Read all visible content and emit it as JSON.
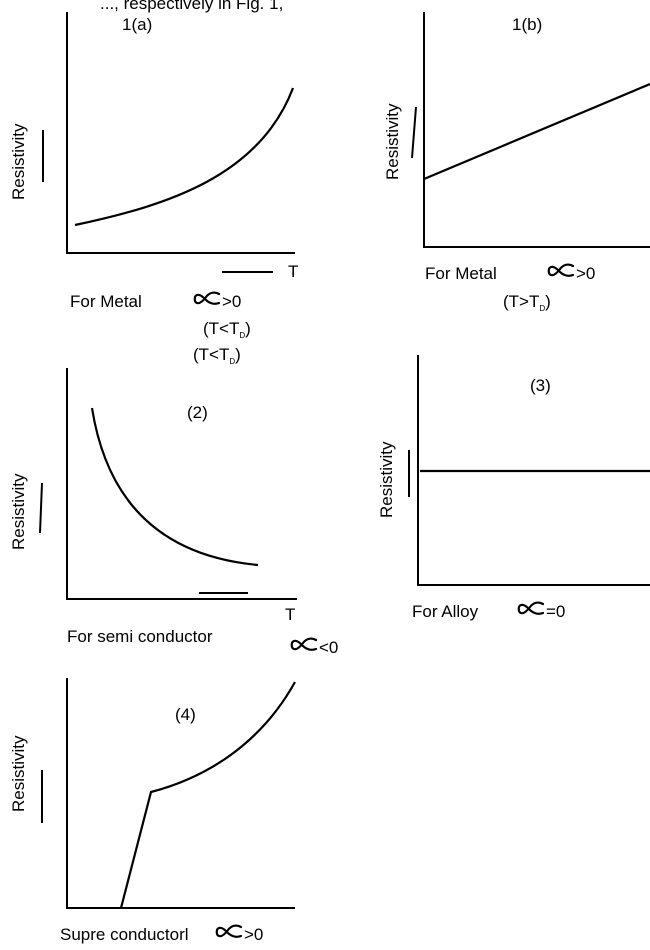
{
  "header_fragment": "..., respectively in Fig. 1,",
  "panels": [
    {
      "id": "1a",
      "label": "1(a)",
      "y_axis": "Resistivity",
      "x_axis": "T",
      "caption": "For Metal",
      "alpha_relation": ">0",
      "conditions": [
        {
          "pre": "(T<T",
          "sub": "D",
          "post": ")"
        },
        {
          "pre": "(T<T",
          "sub": "D",
          "post": ")"
        }
      ]
    },
    {
      "id": "1b",
      "label": "1(b)",
      "y_axis": "Resistivity",
      "caption": "For Metal",
      "alpha_relation": ">0",
      "conditions": [
        {
          "pre": "(T>T",
          "sub": "D",
          "post": ")"
        }
      ]
    },
    {
      "id": "2",
      "label": "(2)",
      "y_axis": "Resistivity",
      "x_axis": "T",
      "caption": "For semi conductor",
      "alpha_relation": "<0"
    },
    {
      "id": "3",
      "label": "(3)",
      "y_axis": "Resistivity",
      "caption": "For Alloy",
      "alpha_relation": "=0"
    },
    {
      "id": "4",
      "label": "(4)",
      "y_axis": "Resistivity",
      "caption": "Supre conductorl",
      "alpha_relation": ">0"
    }
  ]
}
